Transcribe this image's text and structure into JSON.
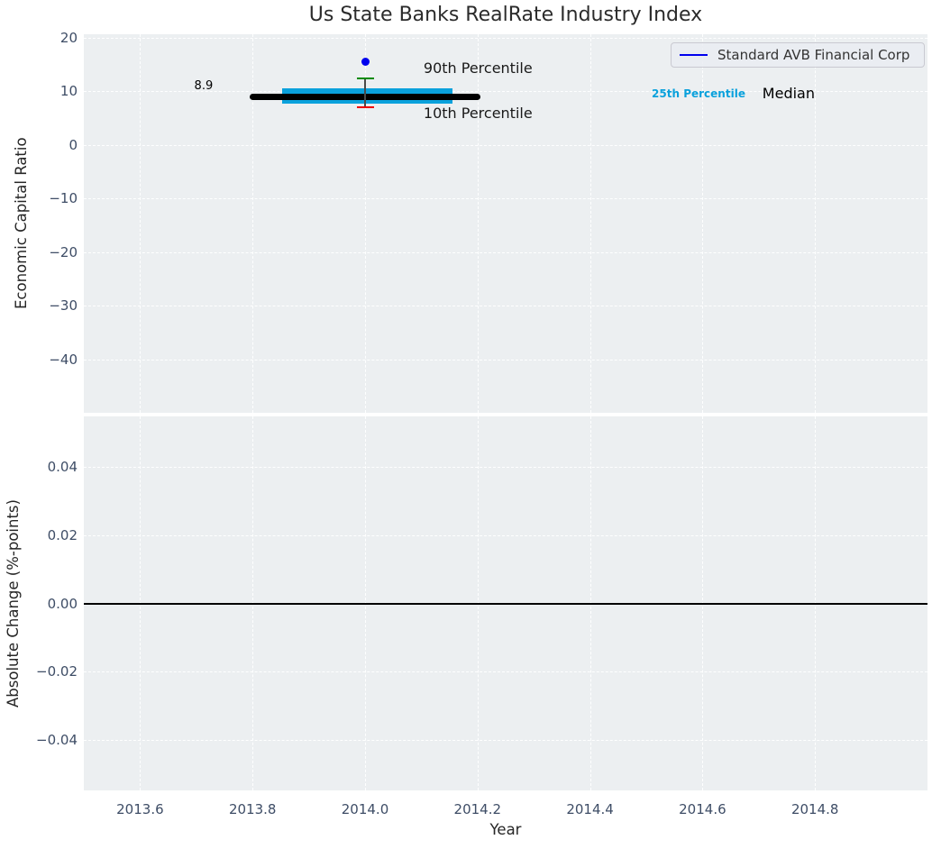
{
  "title": "Us State Banks RealRate Industry Index",
  "colors": {
    "figure_background": "#FFFFFF",
    "axes_background": "#ECEFF1",
    "grid": "#FFFFFF",
    "tick_label": "#3E4D66",
    "axis_label": "#262626",
    "title": "#2B2B2B"
  },
  "chart_data": [
    {
      "type": "line",
      "title": "Us State Banks RealRate Industry Index",
      "xlabel": "Year",
      "ylabel": "Economic Capital Ratio",
      "xlim": [
        2013.5,
        2015.0
      ],
      "ylim": [
        -50.0,
        20.6
      ],
      "grid": "white dashed",
      "xticks": {
        "values": [
          2013.6,
          2013.8,
          2014.0,
          2014.2,
          2014.4,
          2014.6,
          2014.8
        ],
        "labels": [
          "2013.6",
          "2013.8",
          "2014.0",
          "2014.2",
          "2014.4",
          "2014.6",
          "2014.8"
        ]
      },
      "yticks": {
        "values": [
          20,
          10,
          0,
          -10,
          -20,
          -30,
          -40
        ],
        "labels": [
          "20",
          "10",
          "0",
          "−10",
          "−20",
          "−30",
          "−40"
        ]
      },
      "legend": {
        "label": "Standard AVB Financial Corp",
        "line_color": "#0000EE",
        "position": "upper right"
      },
      "series": {
        "median_line": {
          "name": "Median",
          "x": [
            2013.795,
            2014.205
          ],
          "y": 8.9,
          "value_label": "8.9",
          "color": "#000000"
        },
        "percentile_band": {
          "name": "25th Percentile band",
          "x": [
            2013.853,
            2014.155
          ],
          "p25": 7.6,
          "p75": 10.5,
          "color": "#0AA1DC"
        },
        "percentile_whisker": {
          "x": 2014.0,
          "p90": 12.4,
          "p10": 7.0,
          "p90_color": "#008A00",
          "p10_color": "#EE0000",
          "line_color": "#4A4A4A"
        },
        "company_point": {
          "name": "Standard AVB Financial Corp",
          "x": 2014.0,
          "y": 15.4,
          "color": "#0000EE"
        }
      },
      "annotations": [
        {
          "text": "8.9",
          "x": 2013.713,
          "y": 10.7,
          "anchor": "center",
          "size": 13,
          "color": "#000000",
          "bold": false
        },
        {
          "text": "90th Percentile",
          "x": 2014.104,
          "y": 13.9,
          "anchor": "left",
          "size": 16,
          "color": "#1A1A1A",
          "bold": false
        },
        {
          "text": "10th Percentile",
          "x": 2014.104,
          "y": 5.5,
          "anchor": "left",
          "size": 16,
          "color": "#1A1A1A",
          "bold": false
        },
        {
          "text": "25th Percentile",
          "x": 2014.593,
          "y": 9.2,
          "anchor": "center",
          "size": 12,
          "color": "#0AA1DC",
          "bold": true
        },
        {
          "text": "Median",
          "x": 2014.753,
          "y": 9.2,
          "anchor": "center",
          "size": 16,
          "color": "#000000",
          "bold": false
        }
      ]
    },
    {
      "type": "line",
      "xlabel": "Year",
      "ylabel": "Absolute Change (%-points)",
      "xlim": [
        2013.5,
        2015.0
      ],
      "ylim": [
        -0.0548,
        0.0548
      ],
      "grid": "white dashed",
      "xticks": {
        "values": [
          2013.6,
          2013.8,
          2014.0,
          2014.2,
          2014.4,
          2014.6,
          2014.8
        ],
        "labels": [
          "2013.6",
          "2013.8",
          "2014.0",
          "2014.2",
          "2014.4",
          "2014.6",
          "2014.8"
        ]
      },
      "yticks": {
        "values": [
          0.04,
          0.02,
          0.0,
          -0.02,
          -0.04
        ],
        "labels": [
          "0.04",
          "0.02",
          "0.00",
          "−0.02",
          "−0.04"
        ]
      },
      "zero_line": {
        "y": 0.0,
        "color": "#000000"
      },
      "series": {}
    }
  ]
}
